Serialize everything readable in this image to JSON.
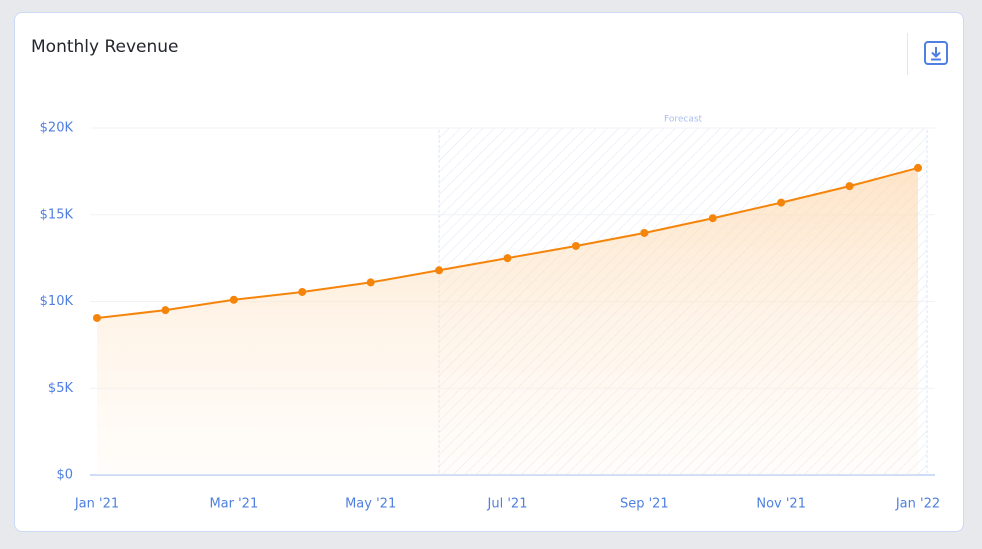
{
  "header": {
    "title": "Monthly Revenue"
  },
  "chart_data": {
    "type": "line",
    "categories": [
      "Jan '21",
      null,
      "Mar '21",
      null,
      "May '21",
      null,
      "Jul '21",
      null,
      "Sep '21",
      null,
      "Nov '21",
      null,
      "Jan '22"
    ],
    "series": [
      {
        "name": "Revenue",
        "color": "#f5850a",
        "values": [
          9050,
          9500,
          10100,
          10550,
          11100,
          11800,
          12500,
          13200,
          13950,
          14800,
          15700,
          16650,
          17700
        ]
      }
    ],
    "ylim": [
      0,
      20000
    ],
    "yticks": [
      {
        "value": 0,
        "label": "$0"
      },
      {
        "value": 5000,
        "label": "$5K"
      },
      {
        "value": 10000,
        "label": "$10K"
      },
      {
        "value": 15000,
        "label": "$15K"
      },
      {
        "value": 20000,
        "label": "$20K"
      }
    ],
    "grid": true,
    "annotations": [
      {
        "text": "Forecast",
        "from": 5
      }
    ]
  }
}
